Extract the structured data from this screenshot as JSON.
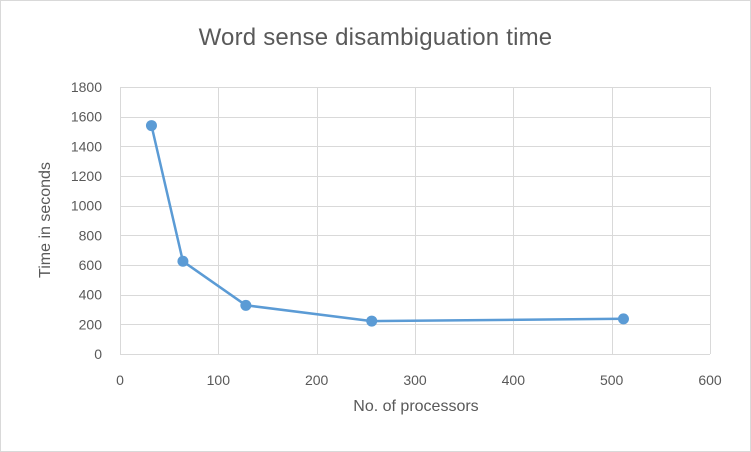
{
  "chart_data": {
    "type": "line",
    "title": "Word sense disambiguation time",
    "xlabel": "No. of processors",
    "ylabel": "Time in seconds",
    "xlim": [
      0,
      600
    ],
    "ylim": [
      0,
      1800
    ],
    "x_ticks": [
      0,
      100,
      200,
      300,
      400,
      500,
      600
    ],
    "y_ticks": [
      0,
      200,
      400,
      600,
      800,
      1000,
      1200,
      1400,
      1600,
      1800
    ],
    "grid": true,
    "legend": "none",
    "series": [
      {
        "color": "#5b9bd5",
        "points": [
          {
            "x": 32,
            "y": 1540
          },
          {
            "x": 64,
            "y": 625
          },
          {
            "x": 128,
            "y": 328
          },
          {
            "x": 256,
            "y": 222
          },
          {
            "x": 512,
            "y": 237
          }
        ]
      }
    ]
  }
}
